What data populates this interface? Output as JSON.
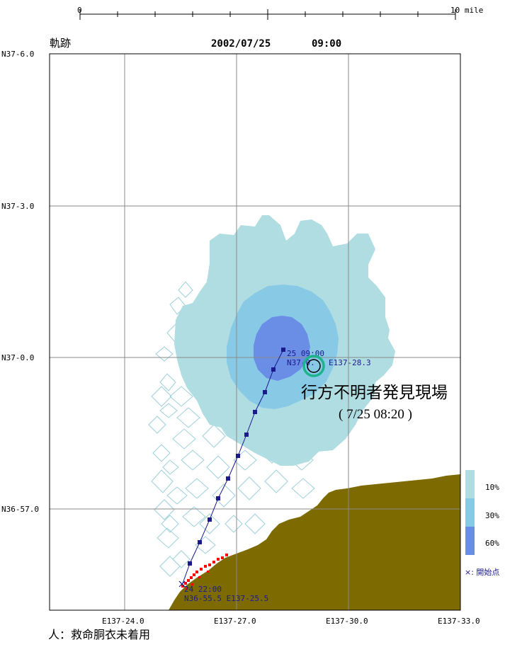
{
  "scale_bar": {
    "start_label": "0",
    "end_label": "10 mile"
  },
  "header": {
    "title": "軌跡",
    "date": "2002/07/25",
    "time": "09:00"
  },
  "axes": {
    "lat_ticks": [
      "N37-6.0",
      "N37-3.0",
      "N37-0.0",
      "N36-57.0"
    ],
    "lon_ticks": [
      "E137-24.0",
      "E137-27.0",
      "E137-30.0",
      "E137-33.0"
    ]
  },
  "track": {
    "start_time_label": "24 22:00",
    "start_pos_label": "N36-55.5 E137-25.5",
    "end_time_label": "25 09:00",
    "end_pos_lat_label": "N37-0.",
    "end_pos_lon_label": "E137-28.3"
  },
  "discovery": {
    "title": "行方不明者発見現場",
    "subtitle": "( 7/25  08:20 )"
  },
  "legend": {
    "items": [
      {
        "label": "10%",
        "color": "#b0dde2"
      },
      {
        "label": "30%",
        "color": "#88c9e6"
      },
      {
        "label": "60%",
        "color": "#6a8ee6"
      }
    ],
    "start_marker_label": "×: 開始点"
  },
  "footer": {
    "note": "人：救命胴衣未着用"
  },
  "colors": {
    "land": "#7d6a00",
    "coast_marks": "#ff0000",
    "track_line": "#1a1a8c",
    "scatter_outline": "#9ed0da",
    "grid": "#8a8a8a",
    "discovery_ring": "#1db38c"
  }
}
